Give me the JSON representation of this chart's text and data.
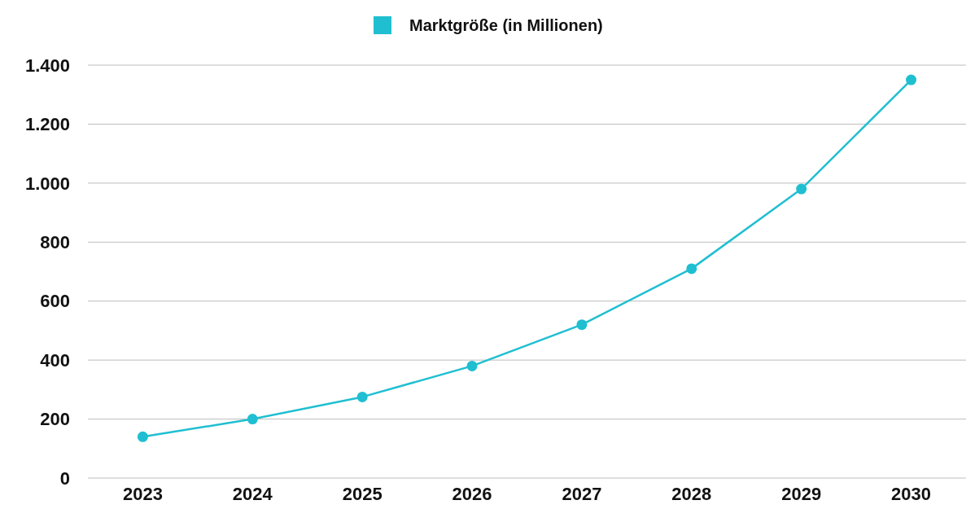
{
  "chart_data": {
    "type": "line",
    "categories": [
      "2023",
      "2024",
      "2025",
      "2026",
      "2027",
      "2028",
      "2029",
      "2030"
    ],
    "series": [
      {
        "name": "Marktgröße (in Millionen)",
        "color": "#1fbfd1",
        "values": [
          140,
          200,
          275,
          380,
          520,
          710,
          980,
          1350
        ]
      }
    ],
    "ylim": [
      0,
      1400
    ],
    "yticks": [
      {
        "value": 0,
        "label": "0"
      },
      {
        "value": 200,
        "label": "200"
      },
      {
        "value": 400,
        "label": "400"
      },
      {
        "value": 600,
        "label": "600"
      },
      {
        "value": 800,
        "label": "800"
      },
      {
        "value": 1000,
        "label": "1.000"
      },
      {
        "value": 1200,
        "label": "1.200"
      },
      {
        "value": 1400,
        "label": "1.400"
      }
    ],
    "grid": "y",
    "legend": "top",
    "marker": "circle",
    "line_style": "solid"
  }
}
